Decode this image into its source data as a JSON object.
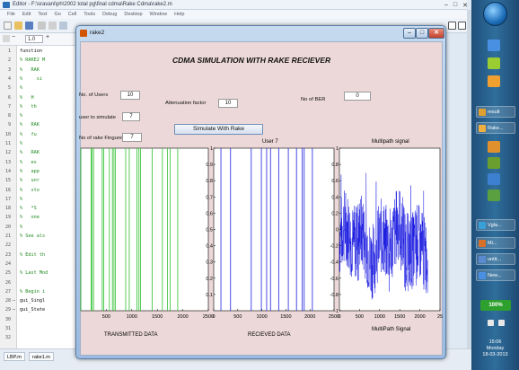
{
  "editor": {
    "title": "Editor - F:\\sravani\\ph\\2002 total pg\\final cdma\\Rake Cdma\\rake2.m",
    "window_controls": [
      "–",
      "□",
      "✕"
    ],
    "menu": [
      "File",
      "Edit",
      "Text",
      "Go",
      "Cell",
      "Tools",
      "Debug",
      "Desktop",
      "Window",
      "Help"
    ],
    "zoom_value": "1.0",
    "line_numbers": [
      "1",
      "2",
      "3",
      "4",
      "5",
      "6",
      "7",
      "8",
      "9",
      "10",
      "11",
      "12",
      "13",
      "14",
      "15",
      "16",
      "17",
      "18",
      "19",
      "20",
      "21",
      "22",
      "23",
      "24",
      "25",
      "26",
      "27",
      "28",
      "29",
      "30",
      "31",
      "32"
    ],
    "code_lines": [
      {
        "t": "function",
        "k": true
      },
      {
        "t": "% RAKE2 M",
        "k": false
      },
      {
        "t": "%   RAK",
        "k": false
      },
      {
        "t": "%     si",
        "k": false
      },
      {
        "t": "%",
        "k": false
      },
      {
        "t": "%   H",
        "k": false
      },
      {
        "t": "%   th",
        "k": false
      },
      {
        "t": "%",
        "k": false
      },
      {
        "t": "%   RAK",
        "k": false
      },
      {
        "t": "%   fu",
        "k": false
      },
      {
        "t": "%",
        "k": false
      },
      {
        "t": "%   RAK",
        "k": false
      },
      {
        "t": "%   ex",
        "k": false
      },
      {
        "t": "%   app",
        "k": false
      },
      {
        "t": "%   unr",
        "k": false
      },
      {
        "t": "%   sto",
        "k": false
      },
      {
        "t": "%",
        "k": false
      },
      {
        "t": "%   *S",
        "k": false
      },
      {
        "t": "%   one",
        "k": false
      },
      {
        "t": "%",
        "k": false
      },
      {
        "t": "% See als",
        "k": false
      },
      {
        "t": "",
        "k": false
      },
      {
        "t": "% Edit th",
        "k": false
      },
      {
        "t": "",
        "k": false
      },
      {
        "t": "% Last Mod",
        "k": false
      },
      {
        "t": "",
        "k": false
      },
      {
        "t": "% Begin i",
        "k": false
      },
      {
        "t": "gui_Singl",
        "k": true
      },
      {
        "t": "gui_State",
        "k": true
      },
      {
        "t": "",
        "k": false
      },
      {
        "t": "",
        "k": false
      },
      {
        "t": "",
        "k": false
      }
    ],
    "dash_lines": [
      "28",
      "29"
    ],
    "tabs": [
      "LBP.m",
      "rake1.m"
    ]
  },
  "taskbar": {
    "items": [
      {
        "label": "result",
        "color": "#e0a030"
      },
      {
        "label": "Rake...",
        "color": "#f0b040"
      },
      {
        "label": "Vgla...",
        "color": "#3aa0d8"
      },
      {
        "label": "Mi...",
        "color": "#d8702a"
      },
      {
        "label": "untit...",
        "color": "#5a8bd0"
      },
      {
        "label": "New...",
        "color": "#4a90e2"
      }
    ],
    "tray_badge": "100%",
    "clock_time": "15:06",
    "clock_day": "Monday",
    "clock_date": "18-03-2013"
  },
  "figure": {
    "window_title": "rake2",
    "title": "CDMA SIMULATION WITH RAKE RECIEVER",
    "fields": {
      "num_users": {
        "label": "No. of Users",
        "value": "10"
      },
      "attenuation": {
        "label": "Attenuation factor",
        "value": "10"
      },
      "num_ber": {
        "label": "No of BER",
        "value": "0"
      },
      "user_to_simulate": {
        "label": "user to simulate",
        "value": "7"
      },
      "rake_fingures": {
        "label": "No of rake Fingures",
        "value": "7"
      }
    },
    "simulate_button": "Simulate With Rake",
    "plot_labels": {
      "plot1_bottom": "TRANSMITTED DATA",
      "plot2_title": "User 7",
      "plot2_bottom": "RECIEVED DATA",
      "plot3_title": "Multipath signal",
      "plot3_bottom": "MultiPath Signal"
    }
  },
  "chart_data": [
    {
      "type": "line",
      "title": "",
      "xlabel": "TRANSMITTED DATA",
      "ylabel": "",
      "xlim": [
        0,
        2500
      ],
      "ylim": [
        0,
        1
      ],
      "x_ticks": [
        "500",
        "1000",
        "1500",
        "2000",
        "2500"
      ],
      "y_ticks": [],
      "series": [
        {
          "color": "#30c030",
          "x": [
            0,
            200,
            220,
            250,
            420,
            450,
            560,
            620,
            650,
            680,
            880,
            950,
            1100,
            1140,
            1170,
            1400,
            1600,
            1700,
            1750,
            1900
          ]
        }
      ]
    },
    {
      "type": "line",
      "title": "User 7",
      "xlabel": "RECIEVED DATA",
      "ylabel": "",
      "xlim": [
        0,
        2500
      ],
      "ylim": [
        0,
        1
      ],
      "x_ticks": [
        "0",
        "500",
        "1000",
        "1500",
        "2000",
        "2500"
      ],
      "y_ticks": [
        "0.1",
        "0.2",
        "0.3",
        "0.4",
        "0.5",
        "0.6",
        "0.7",
        "0.8",
        "0.9",
        "1"
      ],
      "series": [
        {
          "color": "#2020e0",
          "x": [
            150,
            350,
            780,
            990,
            1100,
            1180,
            1350,
            1550,
            1720,
            1840,
            1880,
            2050
          ]
        }
      ]
    },
    {
      "type": "line",
      "title": "Multipath signal",
      "xlabel": "MultiPath Signal",
      "ylabel": "",
      "xlim": [
        0,
        2500
      ],
      "ylim": [
        -1,
        1
      ],
      "x_ticks": [
        "0",
        "500",
        "1000",
        "1500",
        "2000",
        "25"
      ],
      "y_ticks": [
        "-1",
        "-0.8",
        "-0.6",
        "-0.4",
        "-0.2",
        "0",
        "0.2",
        "0.4",
        "0.6",
        "0.8",
        "1"
      ],
      "series": [
        {
          "color": "#0000dd",
          "description": "dense noisy multipath signal, mostly between -0.6 and 0.4 with spikes to -0.8 and 0.8"
        }
      ]
    }
  ]
}
